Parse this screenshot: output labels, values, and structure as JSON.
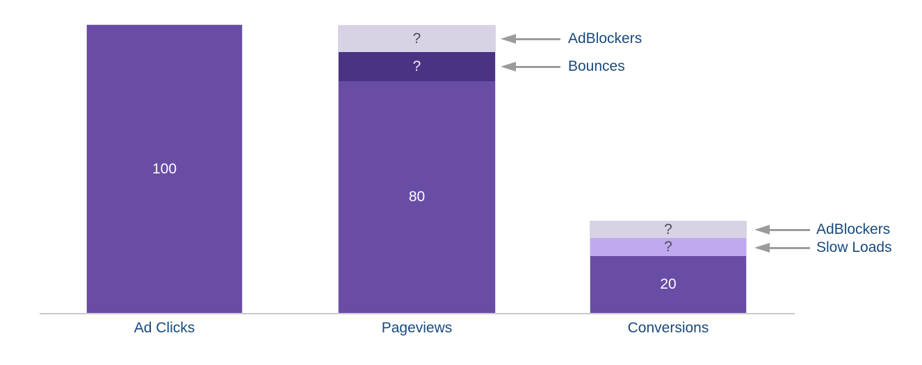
{
  "chart_data": {
    "type": "bar",
    "subtype": "stacked_funnel",
    "title": "",
    "xlabel": "",
    "ylabel": "",
    "categories": [
      "Ad Clicks",
      "Pageviews",
      "Conversions"
    ],
    "ylim": [
      0,
      100
    ],
    "grid": false,
    "legend": "none",
    "bars": [
      {
        "category": "Ad Clicks",
        "total": 100,
        "segments": [
          {
            "name": "Ad Clicks",
            "value": 100,
            "label": "100",
            "color": "#694da5",
            "text_color": "#ffffff"
          }
        ]
      },
      {
        "category": "Pageviews",
        "total": 100,
        "segments": [
          {
            "name": "AdBlockers",
            "value": null,
            "label": "?",
            "estimated_value": 9,
            "color": "#d7d3e5",
            "text_color": "#4a4a51"
          },
          {
            "name": "Bounces",
            "value": null,
            "label": "?",
            "estimated_value": 10,
            "color": "#4b3383",
            "text_color": "#ffffff"
          },
          {
            "name": "Pageviews",
            "value": 80,
            "label": "80",
            "color": "#694da5",
            "text_color": "#ffffff"
          }
        ]
      },
      {
        "category": "Conversions",
        "total": 32,
        "segments": [
          {
            "name": "AdBlockers",
            "value": null,
            "label": "?",
            "estimated_value": 6,
            "color": "#d7d3e5",
            "text_color": "#4a4a51"
          },
          {
            "name": "Slow Loads",
            "value": null,
            "label": "?",
            "estimated_value": 6,
            "color": "#c0a9ee",
            "text_color": "#4a4a51"
          },
          {
            "name": "Conversions",
            "value": 20,
            "label": "20",
            "color": "#694da5",
            "text_color": "#ffffff"
          }
        ]
      }
    ],
    "annotations": [
      {
        "text": "AdBlockers",
        "target_bar": "Pageviews",
        "target_segment": "AdBlockers"
      },
      {
        "text": "Bounces",
        "target_bar": "Pageviews",
        "target_segment": "Bounces"
      },
      {
        "text": "AdBlockers",
        "target_bar": "Conversions",
        "target_segment": "AdBlockers"
      },
      {
        "text": "Slow Loads",
        "target_bar": "Conversions",
        "target_segment": "Slow Loads"
      }
    ],
    "colors": {
      "primary_purple": "#694da5",
      "dark_purple": "#4b3383",
      "light_lavender": "#d7d3e5",
      "lilac": "#c0a9ee",
      "label_navy": "#17497e",
      "arrow_gray": "#9b9b9b",
      "axis_gray": "#c9c9c9",
      "background": "#ffffff"
    }
  }
}
